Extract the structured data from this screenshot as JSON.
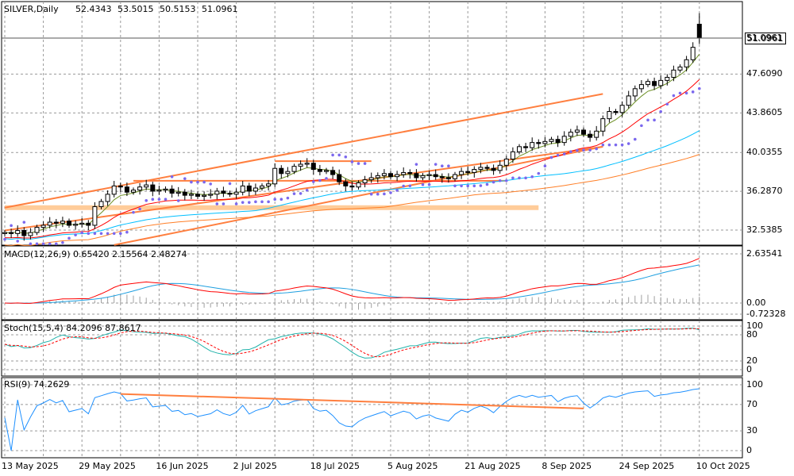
{
  "header": {
    "symbol": "SILVER,Daily",
    "open": "52.4343",
    "high": "53.5015",
    "low": "50.5153",
    "close": "51.0961"
  },
  "current_price_label": "51.0961",
  "colors": {
    "bull": "#ffffff",
    "bear": "#000000",
    "ma_fast": "#6b8e23",
    "ma_mid": "#ff0000",
    "ma_slow": "#00bfff",
    "ma_long": "#ff7f27",
    "sar": "#7b68ee",
    "trend": "#ff7f3f",
    "band": "#ffcc99",
    "macd": "#ff0000",
    "signal": "#1e9fe0",
    "hist": "#a0a0a0",
    "stoch_main": "#20b2aa",
    "stoch_signal": "#ff0000",
    "rsi": "#1e90ff"
  },
  "macd": {
    "label": "MACD(12,26,9) 0.65420 2.15564 2.48274",
    "ticks": [
      "2.63541",
      "0.00",
      "-0.72328"
    ]
  },
  "stoch": {
    "label": "Stoch(15,5,4) 84.2096 87.8617",
    "ticks": [
      "100",
      "80",
      "20",
      "0"
    ]
  },
  "rsi": {
    "label": "RSI(9) 74.2629",
    "ticks": [
      "100",
      "70",
      "30",
      "0"
    ]
  },
  "chart_data": {
    "type": "candlestick",
    "title": "SILVER,Daily",
    "price_ticks": [
      "51.0961",
      "47.6090",
      "43.8605",
      "40.0355",
      "36.2870",
      "32.5385"
    ],
    "ylim": [
      31.08,
      54.62
    ],
    "date_labels": [
      "13 May 2025",
      "29 May 2025",
      "16 Jun 2025",
      "2 Jul 2025",
      "18 Jul 2025",
      "5 Aug 2025",
      "21 Aug 2025",
      "8 Sep 2025",
      "24 Sep 2025",
      "10 Oct 2025"
    ],
    "date_label_every_bars": 12,
    "closes": [
      32.3,
      32.2,
      32.5,
      32.0,
      32.3,
      32.8,
      33.0,
      33.3,
      33.2,
      33.4,
      33.0,
      33.1,
      33.2,
      33.0,
      34.8,
      35.3,
      36.0,
      36.8,
      36.7,
      36.2,
      36.4,
      36.7,
      36.9,
      36.3,
      36.4,
      36.5,
      36.1,
      36.2,
      35.9,
      36.0,
      35.8,
      35.9,
      36.0,
      36.3,
      36.1,
      36.0,
      36.2,
      36.8,
      36.3,
      36.6,
      36.8,
      37.0,
      38.5,
      38.0,
      38.2,
      38.7,
      38.9,
      39.0,
      38.4,
      38.2,
      38.3,
      37.9,
      37.2,
      36.8,
      36.7,
      37.1,
      37.4,
      37.6,
      37.8,
      38.0,
      37.7,
      37.9,
      38.1,
      38.0,
      37.6,
      37.8,
      37.9,
      37.7,
      37.6,
      37.5,
      37.9,
      38.2,
      38.1,
      38.4,
      38.6,
      38.5,
      38.3,
      38.8,
      39.4,
      40.1,
      40.6,
      40.5,
      41.0,
      40.9,
      41.1,
      41.3,
      41.0,
      41.6,
      42.0,
      42.2,
      41.8,
      41.5,
      42.1,
      43.3,
      44.0,
      43.9,
      44.6,
      45.5,
      46.2,
      46.6,
      46.9,
      46.5,
      47.0,
      47.3,
      48.0,
      48.3,
      49.0,
      50.2,
      51.1
    ],
    "last_bar": {
      "open": 52.4343,
      "high": 53.5015,
      "low": 50.5153,
      "close": 51.0961
    },
    "trendlines": [
      {
        "from": [
          0,
          34.7
        ],
        "to": [
          93,
          45.7
        ]
      },
      {
        "from": [
          0,
          32.5
        ],
        "to": [
          93,
          40.6
        ]
      },
      {
        "from": [
          17,
          31.1
        ],
        "to": [
          93,
          40.6
        ]
      },
      {
        "from": [
          42,
          39.2
        ],
        "to": [
          57,
          39.2
        ]
      },
      {
        "from": [
          20,
          37.3
        ],
        "to": [
          78,
          37.3
        ]
      }
    ],
    "support_band": {
      "from": 0,
      "to": 83,
      "price": 34.7
    },
    "rsi_trendline": {
      "from": [
        18,
        86
      ],
      "to": [
        90,
        64
      ]
    }
  }
}
